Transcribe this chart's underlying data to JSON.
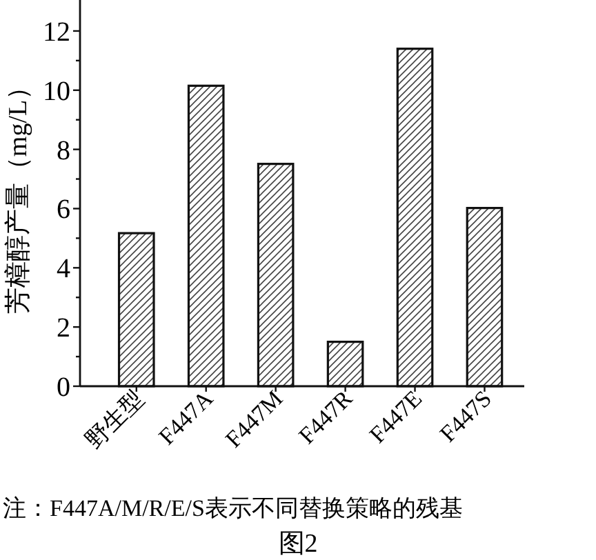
{
  "chart_data": {
    "type": "bar",
    "ylabel": "芳樟醇产量（mg/L）",
    "categories": [
      "野生型",
      "F447A",
      "F447M",
      "F447R",
      "F447E",
      "F447S"
    ],
    "values": [
      5.17,
      10.15,
      7.51,
      1.5,
      11.4,
      6.02
    ],
    "color": "#ffffff",
    "ylim": [
      0,
      13
    ],
    "yticks": [
      0,
      {
        "value": 1,
        "label": null
      },
      2,
      {
        "value": 3,
        "label": null
      },
      4,
      {
        "value": 5,
        "label": null
      },
      6,
      {
        "value": 7,
        "label": null
      },
      8,
      {
        "value": 9,
        "label": null
      },
      10,
      {
        "value": 11,
        "label": null
      },
      12
    ],
    "annotations": [
      "注：F447A/M/R/E/S表示不同替换策略的残基",
      "图2"
    ]
  }
}
